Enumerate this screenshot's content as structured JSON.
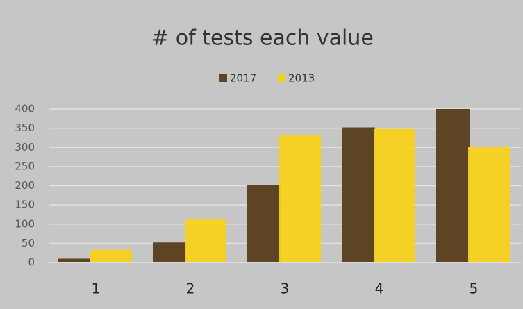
{
  "chart_data": {
    "type": "bar",
    "title": "# of tests each value",
    "categories": [
      "1",
      "2",
      "3",
      "4",
      "5"
    ],
    "series": [
      {
        "name": "2017",
        "color": "#5c4425",
        "values": [
          10,
          52,
          202,
          352,
          400
        ]
      },
      {
        "name": "2013",
        "color": "#f7d21b",
        "values": [
          33,
          112,
          332,
          348,
          302
        ]
      }
    ],
    "ylim": [
      0,
      400
    ],
    "yticks": [
      0,
      50,
      100,
      150,
      200,
      250,
      300,
      350,
      400
    ],
    "grid": true,
    "legend": "top"
  }
}
